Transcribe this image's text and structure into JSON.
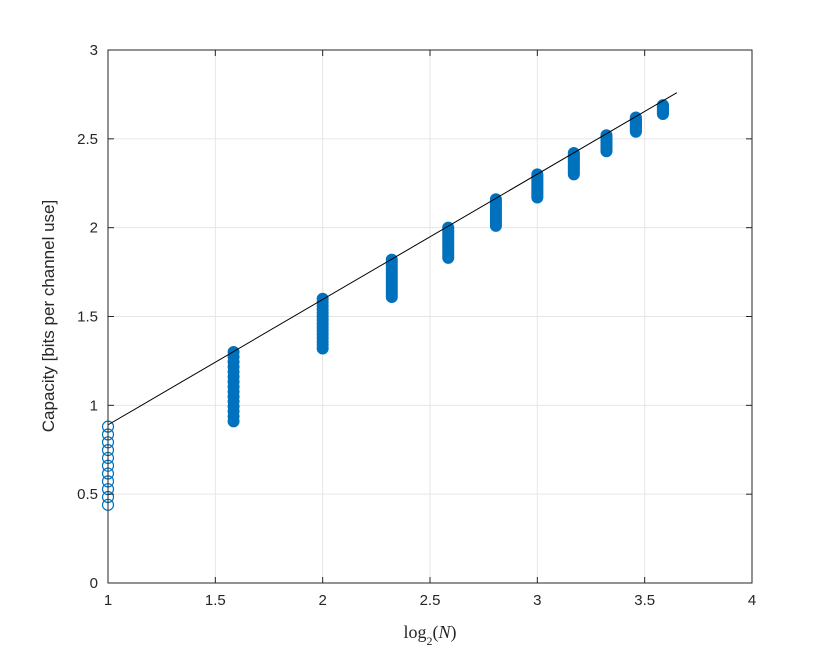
{
  "chart_data": {
    "type": "scatter",
    "xlabel": "log2(N)",
    "ylabel": "Capacity [bits per channel use]",
    "xlim": [
      1,
      4
    ],
    "ylim": [
      0,
      3
    ],
    "xticks": [
      "1",
      "1.5",
      "2",
      "2.5",
      "3",
      "3.5",
      "4"
    ],
    "yticks": [
      "0",
      "0.5",
      "1",
      "1.5",
      "2",
      "2.5",
      "3"
    ],
    "grid": true,
    "colors": {
      "marker": "#0072BD",
      "line": "#000000",
      "grid": "#e6e6e6",
      "axis": "#262626"
    },
    "reference_line": {
      "x": [
        1,
        3.65
      ],
      "y": [
        0.89,
        2.76
      ]
    },
    "groups": [
      {
        "x": 1.0,
        "y_min": 0.44,
        "y_max": 0.88,
        "filled": false
      },
      {
        "x": 1.585,
        "y_min": 0.91,
        "y_max": 1.3,
        "filled": true
      },
      {
        "x": 2.0,
        "y_min": 1.32,
        "y_max": 1.6,
        "filled": true
      },
      {
        "x": 2.322,
        "y_min": 1.61,
        "y_max": 1.82,
        "filled": true
      },
      {
        "x": 2.585,
        "y_min": 1.83,
        "y_max": 2.0,
        "filled": true
      },
      {
        "x": 2.807,
        "y_min": 2.01,
        "y_max": 2.16,
        "filled": true
      },
      {
        "x": 3.0,
        "y_min": 2.17,
        "y_max": 2.3,
        "filled": true
      },
      {
        "x": 3.17,
        "y_min": 2.3,
        "y_max": 2.42,
        "filled": true
      },
      {
        "x": 3.322,
        "y_min": 2.43,
        "y_max": 2.52,
        "filled": true
      },
      {
        "x": 3.459,
        "y_min": 2.54,
        "y_max": 2.62,
        "filled": true
      },
      {
        "x": 3.585,
        "y_min": 2.64,
        "y_max": 2.69,
        "filled": true
      }
    ]
  }
}
